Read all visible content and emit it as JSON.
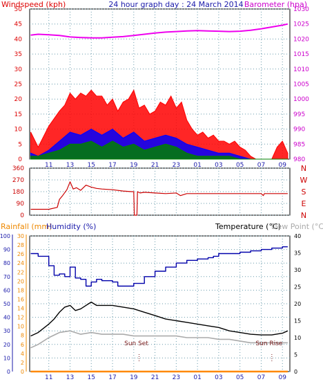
{
  "header": {
    "windspeed_label": "Windspeed (kph)",
    "graph_title": "24 hour graph day : 24 March 2014",
    "barometer_label": "Barometer (hpa)"
  },
  "colors": {
    "wind": "#ff0000",
    "gust_avg": "#0000ff",
    "wind_avg": "#008000",
    "barometer": "#ee00ee",
    "direction": "#cc0000",
    "humidity": "#0000aa",
    "temperature": "#000000",
    "dewpoint": "#aaaaaa",
    "rainfall": "#ff8800",
    "left_axis_label": "#dd0000",
    "grid": "#6699aa"
  },
  "x_ticks": [
    "11",
    "13",
    "15",
    "17",
    "19",
    "21",
    "23",
    "01",
    "03",
    "05",
    "07",
    "09"
  ],
  "chart_data": [
    {
      "type": "line",
      "title": "24 hour graph day : 24 March 2014",
      "ylabel": "Windspeed (kph)",
      "y2label": "Barometer (hpa)",
      "ylim": [
        0,
        50
      ],
      "y2lim": [
        980,
        1030
      ],
      "y_ticks": [
        0,
        5,
        10,
        15,
        20,
        25,
        30,
        35,
        40,
        45,
        50
      ],
      "y2_ticks": [
        980,
        985,
        990,
        995,
        1000,
        1005,
        1010,
        1015,
        1020,
        1025,
        1030
      ],
      "series": [
        {
          "name": "Windspeed (kph)",
          "x": [
            9.3,
            10,
            11,
            12,
            12.5,
            13,
            13.5,
            14,
            14.5,
            15,
            15.5,
            16,
            16.5,
            17,
            17.5,
            18,
            18.5,
            19,
            19.5,
            20,
            20.5,
            21,
            21.5,
            22,
            22.5,
            23,
            23.5,
            24,
            24.5,
            25,
            25.5,
            26,
            26.5,
            27,
            27.5,
            28,
            28.5,
            29,
            29.5,
            30,
            30.5,
            31,
            31.5,
            32,
            32.5,
            33,
            33.5
          ],
          "values": [
            9,
            4,
            11,
            16,
            18,
            22,
            20,
            22,
            21,
            23,
            21,
            21,
            18,
            20,
            16,
            19,
            20,
            23,
            17,
            18,
            15,
            16,
            19,
            18,
            21,
            17,
            19,
            13,
            10,
            8,
            9,
            7,
            8,
            6,
            6,
            5,
            6,
            4,
            3,
            1,
            0,
            0,
            0,
            0,
            4,
            6,
            2
          ]
        },
        {
          "name": "Gust average",
          "x": [
            9.3,
            10,
            11,
            12,
            13,
            14,
            15,
            16,
            17,
            18,
            19,
            20,
            21,
            22,
            23,
            24,
            25,
            26,
            27,
            28,
            29,
            30,
            31,
            32,
            33,
            33.5
          ],
          "values": [
            2,
            1,
            3,
            6,
            9,
            8,
            10,
            8,
            10,
            7,
            9,
            6,
            7,
            8,
            7,
            5,
            4,
            3,
            2,
            2,
            1,
            0,
            0,
            0,
            0,
            0
          ]
        },
        {
          "name": "Wind average",
          "x": [
            9.3,
            10,
            11,
            12,
            13,
            14,
            15,
            16,
            17,
            18,
            19,
            20,
            21,
            22,
            23,
            24,
            25,
            26,
            27,
            28,
            29,
            30,
            31,
            32,
            33,
            33.5
          ],
          "values": [
            1,
            1,
            2,
            3,
            5,
            5,
            6,
            4,
            6,
            4,
            5,
            3,
            4,
            5,
            4,
            2,
            1,
            1,
            1,
            1,
            0,
            0,
            0,
            0,
            0,
            0
          ]
        },
        {
          "name": "Barometer (hpa)",
          "axis": "y2",
          "x": [
            9.3,
            10,
            11,
            12,
            13,
            14,
            15,
            16,
            17,
            18,
            19,
            20,
            21,
            22,
            23,
            24,
            25,
            26,
            27,
            28,
            29,
            30,
            31,
            32,
            33,
            33.5
          ],
          "values": [
            1021.3,
            1021.6,
            1021.4,
            1021.2,
            1020.7,
            1020.5,
            1020.4,
            1020.4,
            1020.6,
            1020.8,
            1021.2,
            1021.6,
            1022.0,
            1022.3,
            1022.5,
            1022.7,
            1022.8,
            1022.7,
            1022.6,
            1022.5,
            1022.6,
            1022.9,
            1023.4,
            1024.0,
            1024.6,
            1025.0
          ]
        }
      ]
    },
    {
      "type": "line",
      "ylim": [
        0,
        360
      ],
      "y_ticks": [
        0,
        90,
        180,
        270,
        360
      ],
      "direction_labels": [
        "N",
        "W",
        "S",
        "E",
        "N"
      ],
      "series": [
        {
          "name": "Wind direction",
          "x": [
            9.3,
            11,
            11.8,
            12,
            12.3,
            12.7,
            13,
            13.3,
            13.6,
            14,
            14.5,
            15,
            15.5,
            16,
            17,
            18,
            18.8,
            19,
            19.05,
            19.3,
            19.35,
            19.6,
            20,
            21,
            22,
            23,
            23.4,
            24,
            25,
            26,
            27,
            28,
            29,
            30,
            31,
            31.2,
            31.3,
            32,
            33,
            33.5
          ],
          "values": [
            45,
            45,
            60,
            120,
            150,
            195,
            255,
            200,
            210,
            190,
            230,
            215,
            205,
            200,
            195,
            185,
            180,
            180,
            0,
            0,
            180,
            170,
            175,
            170,
            165,
            170,
            150,
            165,
            165,
            165,
            165,
            165,
            165,
            165,
            165,
            150,
            165,
            165,
            165,
            165
          ]
        }
      ]
    },
    {
      "type": "line",
      "ylabel": "Humidity (%)",
      "y2label": "Temperature (°C)",
      "rain_label": "Rainfall (mm)",
      "dew_label": "Dew Point (°C)",
      "ylim": [
        0,
        100
      ],
      "y_ticks": [
        0,
        10,
        20,
        30,
        40,
        50,
        60,
        70,
        80,
        90,
        100
      ],
      "rain_ticks": [
        0,
        2,
        4,
        6,
        8,
        10,
        12,
        14,
        16,
        18,
        20,
        22,
        24,
        26,
        28,
        30
      ],
      "y2lim": [
        0,
        40
      ],
      "y2_ticks": [
        0,
        5,
        10,
        15,
        20,
        25,
        30,
        35,
        40
      ],
      "annotations": [
        "Sun Set",
        "Sun Rise"
      ],
      "series": [
        {
          "name": "Humidity (%)",
          "x": [
            9.3,
            10,
            11,
            11.5,
            12,
            12.5,
            13,
            13.5,
            14,
            14.5,
            15,
            15.5,
            16,
            17,
            17.5,
            18,
            19,
            20,
            21,
            22,
            23,
            24,
            25,
            26,
            26.5,
            27,
            28,
            29,
            30,
            31,
            32,
            33,
            33.5
          ],
          "values": [
            87,
            85,
            78,
            71,
            72,
            70,
            77,
            69,
            68,
            63,
            66,
            68,
            67,
            66,
            63,
            63,
            65,
            70,
            74,
            77,
            80,
            82,
            83,
            84,
            85,
            87,
            87,
            88,
            89,
            90,
            91,
            92,
            92
          ]
        },
        {
          "name": "Temperature (°C)",
          "axis": "y2",
          "x": [
            9.3,
            10,
            11,
            11.5,
            12,
            12.5,
            13,
            13.5,
            14,
            14.5,
            15,
            15.5,
            16,
            17,
            18,
            19,
            20,
            21,
            22,
            23,
            24,
            25,
            26,
            27,
            28,
            29,
            30,
            31,
            32,
            33,
            33.5
          ],
          "values": [
            10.5,
            11.5,
            14.0,
            15.5,
            17.5,
            19.0,
            19.5,
            18.0,
            18.5,
            19.5,
            20.5,
            19.5,
            19.5,
            19.5,
            19.0,
            18.5,
            17.5,
            16.5,
            15.5,
            15.0,
            14.5,
            14.0,
            13.5,
            13.0,
            12.0,
            11.5,
            11.0,
            10.8,
            10.8,
            11.3,
            12.0
          ]
        },
        {
          "name": "Dew Point (°C)",
          "axis": "y2",
          "x": [
            9.3,
            10,
            11,
            12,
            13,
            14,
            15,
            16,
            17,
            18,
            19,
            20,
            21,
            22,
            23,
            24,
            25,
            26,
            27,
            28,
            29,
            30,
            31,
            32,
            33,
            33.5
          ],
          "values": [
            7.0,
            8.0,
            10.0,
            11.5,
            12.0,
            11.0,
            11.5,
            11.0,
            11.0,
            11.0,
            10.5,
            10.5,
            10.5,
            10.5,
            10.5,
            10.0,
            10.0,
            10.0,
            9.5,
            9.5,
            9.0,
            8.5,
            8.5,
            8.5,
            8.5,
            8.5
          ]
        },
        {
          "name": "Rainfall (mm)",
          "x": [
            9.3,
            33.5
          ],
          "values": [
            0,
            0
          ]
        }
      ]
    }
  ]
}
